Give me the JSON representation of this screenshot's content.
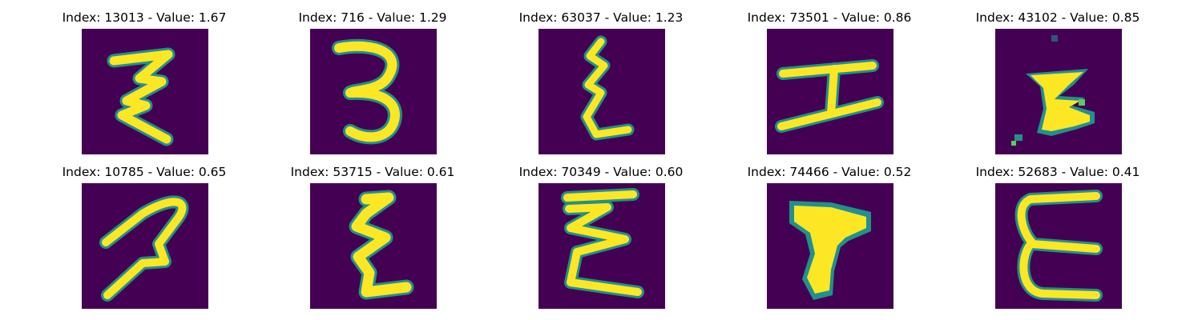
{
  "colors": {
    "background": "#440154",
    "edge": "#21918c",
    "mid": "#5ec962",
    "fill": "#fde725"
  },
  "panels": [
    {
      "title": "Index: 13013 - Value: 1.67",
      "glyph": "handwritten-3-angular"
    },
    {
      "title": "Index: 716 - Value: 1.29",
      "glyph": "handwritten-3"
    },
    {
      "title": "Index: 63037 - Value: 1.23",
      "glyph": "handwritten-epsilon-narrow"
    },
    {
      "title": "Index: 73501 - Value: 0.86",
      "glyph": "handwritten-I"
    },
    {
      "title": "Index: 43102 - Value: 0.85",
      "glyph": "handwritten-blob-E"
    },
    {
      "title": "Index: 10785 - Value: 0.65",
      "glyph": "handwritten-2-slanted"
    },
    {
      "title": "Index: 53715 - Value: 0.61",
      "glyph": "handwritten-epsilon"
    },
    {
      "title": "Index: 70349 - Value: 0.60",
      "glyph": "handwritten-epsilon-wide"
    },
    {
      "title": "Index: 74466 - Value: 0.52",
      "glyph": "handwritten-T-blob"
    },
    {
      "title": "Index: 52683 - Value: 0.41",
      "glyph": "handwritten-E-curved"
    }
  ]
}
